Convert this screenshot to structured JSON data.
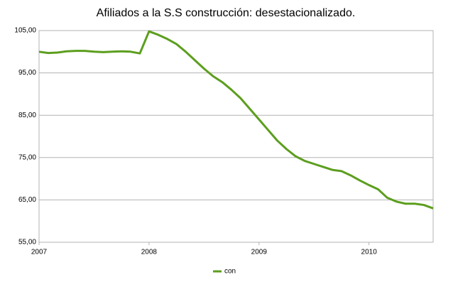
{
  "chart_data": {
    "type": "line",
    "title": "Afiliados a la S.S construcción: desestacionalizado.",
    "categories": [
      "2007",
      null,
      null,
      null,
      null,
      null,
      null,
      null,
      null,
      null,
      null,
      null,
      "2008",
      null,
      null,
      null,
      null,
      null,
      null,
      null,
      null,
      null,
      null,
      null,
      "2009",
      null,
      null,
      null,
      null,
      null,
      null,
      null,
      null,
      null,
      null,
      null,
      "2010",
      null,
      null,
      null,
      null,
      null,
      null,
      null
    ],
    "series": [
      {
        "name": "con",
        "color": "#5c9e1e",
        "values": [
          100.0,
          99.7,
          99.8,
          100.1,
          100.2,
          100.2,
          100.0,
          99.9,
          100.0,
          100.1,
          100.0,
          99.6,
          104.8,
          104.0,
          103.0,
          101.8,
          100.0,
          98.0,
          96.0,
          94.2,
          92.8,
          91.0,
          89.0,
          86.5,
          84.0,
          81.5,
          79.0,
          77.0,
          75.3,
          74.2,
          73.5,
          72.8,
          72.1,
          71.8,
          70.8,
          69.6,
          68.5,
          67.5,
          65.5,
          64.6,
          64.1,
          64.1,
          63.8,
          63.0
        ]
      }
    ],
    "ylim": [
      55,
      105
    ],
    "yticks": [
      {
        "value": 55,
        "label": "55,00"
      },
      {
        "value": 65,
        "label": "65,00"
      },
      {
        "value": 75,
        "label": "75,00"
      },
      {
        "value": 85,
        "label": "85,00"
      },
      {
        "value": 95,
        "label": "95,00"
      },
      {
        "value": 105,
        "label": "105,00"
      }
    ],
    "grid": true,
    "legend": "bottom"
  }
}
